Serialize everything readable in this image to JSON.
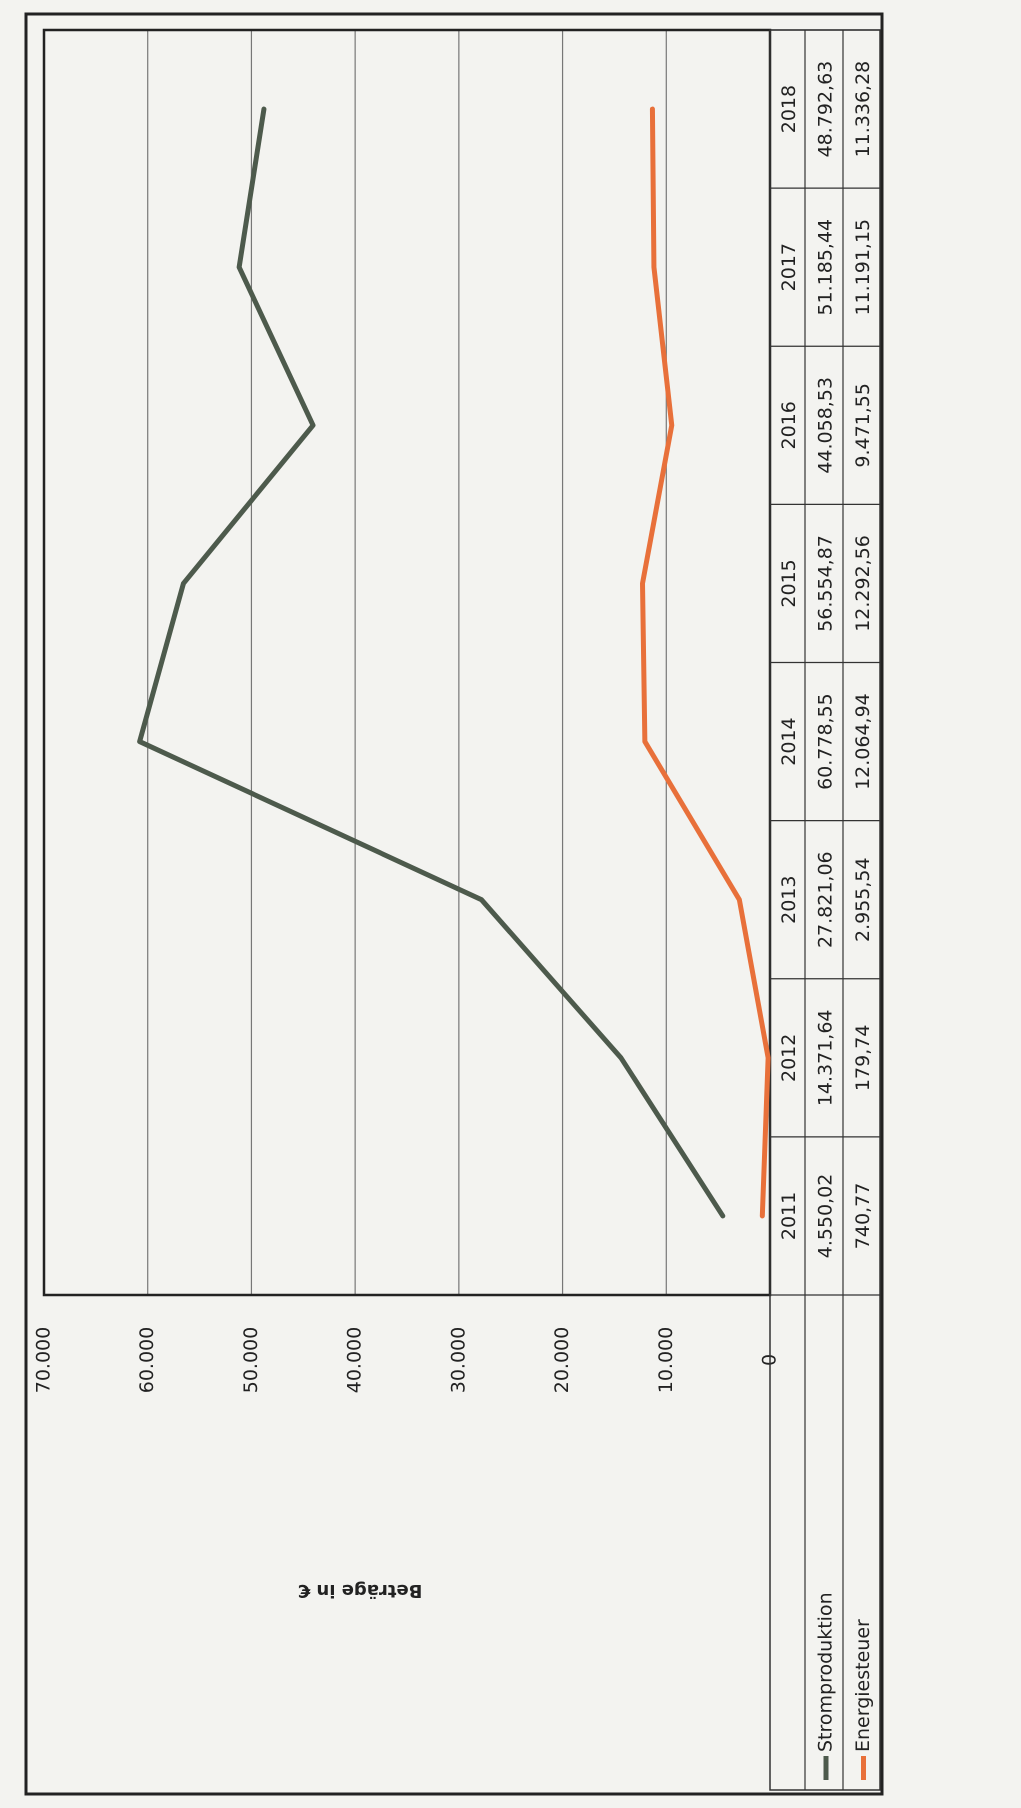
{
  "chart_data": {
    "type": "line",
    "y_label": "Beträge in €",
    "categories": [
      "2011",
      "2012",
      "2013",
      "2014",
      "2015",
      "2016",
      "2017",
      "2018"
    ],
    "series": [
      {
        "name": "Stromproduktion",
        "color": "#4d5a4c",
        "values": [
          4550.02,
          14371.64,
          27821.06,
          60778.55,
          56554.87,
          44058.53,
          51185.44,
          48792.63
        ],
        "value_labels": [
          "4.550,02",
          "14.371,64",
          "27.821,06",
          "60.778,55",
          "56.554,87",
          "44.058,53",
          "51.185,44",
          "48.792,63"
        ]
      },
      {
        "name": "Energiesteuer",
        "color": "#e8703a",
        "values": [
          740.77,
          179.74,
          2955.54,
          12064.94,
          12292.56,
          9471.55,
          11191.15,
          11336.28
        ],
        "value_labels": [
          "740,77",
          "179,74",
          "2.955,54",
          "12.064,94",
          "12.292,56",
          "9.471,55",
          "11.191,15",
          "11.336,28"
        ]
      }
    ],
    "ylim": [
      0,
      70000
    ],
    "yticks": [
      0,
      {
        "value": 10000,
        "label": "10.000"
      },
      {
        "value": 20000,
        "label": "20.000"
      },
      {
        "value": 30000,
        "label": "30.000"
      },
      {
        "value": 40000,
        "label": "40.000"
      },
      {
        "value": 50000,
        "label": "50.000"
      },
      {
        "value": 60000,
        "label": "60.000"
      },
      {
        "value": 70000,
        "label": "70.000"
      }
    ],
    "grid": true
  }
}
